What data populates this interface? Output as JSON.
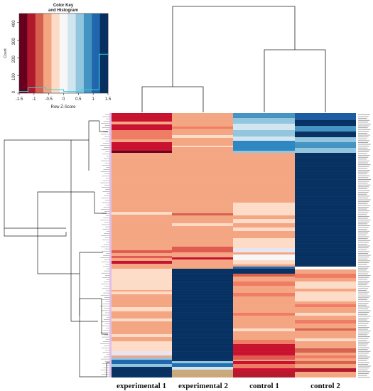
{
  "color_key": {
    "title_line1": "Color Key",
    "title_line2": "and Histogram",
    "xlabel": "Row Z-Score",
    "ylabel": "Count",
    "x_ticks": [
      "-1.5",
      "-1",
      "-0.5",
      "0",
      "0.5",
      "1",
      "1.5"
    ],
    "y_ticks": [
      "0",
      "100",
      "200",
      "300",
      "400"
    ],
    "palette": [
      "#67001f",
      "#b2182b",
      "#d6604d",
      "#f4a582",
      "#fddbc7",
      "#f7f7f7",
      "#d1e5f0",
      "#92c5de",
      "#4393c3",
      "#2166ac",
      "#053061"
    ],
    "hist_color": "#35d0e0",
    "histogram": {
      "x": [
        -1.5,
        -1.2,
        -0.9,
        -0.6,
        -0.3,
        0,
        0.3,
        0.6,
        0.9,
        1.2,
        1.5
      ],
      "counts": [
        10,
        30,
        30,
        20,
        20,
        10,
        10,
        20,
        20,
        220,
        220
      ]
    }
  },
  "chart_data": {
    "type": "heatmap",
    "columns": [
      "experimental 1",
      "experimental 2",
      "control 1",
      "control 2"
    ],
    "value_range": [
      -1.5,
      1.5
    ],
    "colormap": "RdBu (red = low z-score, blue = high z-score)",
    "column_dendrogram": "((experimental 1, experimental 2), (control 1, control 2))",
    "row_groups": [
      {
        "rows": "cluster A (top)",
        "experimental 1": -1.2,
        "experimental 2": -0.7,
        "control 1": 0.8,
        "control 2": 1.3
      },
      {
        "rows": "cluster B (upper middle)",
        "experimental 1": -0.6,
        "experimental 2": -0.6,
        "control 1": -0.5,
        "control 2": 1.5
      },
      {
        "rows": "cluster C (lower)",
        "experimental 1": -0.4,
        "experimental 2": 1.5,
        "control 1": -0.7,
        "control 2": -0.5
      },
      {
        "rows": "cluster D (bottom)",
        "experimental 1": 1.4,
        "experimental 2": 0.6,
        "control 1": -0.9,
        "control 2": -0.8
      }
    ]
  }
}
